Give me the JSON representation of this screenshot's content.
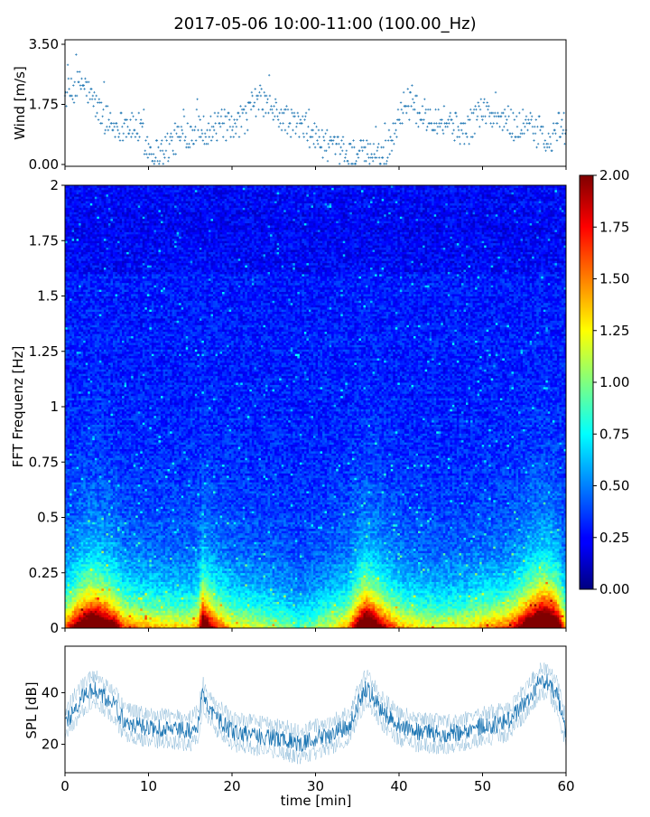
{
  "chart_data": [
    {
      "panel": "wind",
      "type": "scatter",
      "title": "2017-05-06 10:00-11:00 (100.00_Hz)",
      "ylabel": "Wind [m/s]",
      "xlim": [
        0,
        60
      ],
      "ylim": [
        0,
        3.5
      ],
      "yticks": [
        "0.00",
        "1.75",
        "3.50"
      ],
      "color": "#1f77b4",
      "trend": {
        "x": [
          0,
          1,
          2,
          3,
          4,
          5,
          6,
          7,
          8,
          9,
          10,
          11,
          12,
          13,
          14,
          15,
          16,
          17,
          18,
          19,
          20,
          21,
          22,
          23,
          24,
          25,
          26,
          27,
          28,
          29,
          30,
          31,
          32,
          33,
          34,
          35,
          36,
          37,
          38,
          39,
          40,
          41,
          42,
          43,
          44,
          45,
          46,
          47,
          48,
          49,
          50,
          51,
          52,
          53,
          54,
          55,
          56,
          57,
          58,
          59,
          60
        ],
        "y": [
          2.0,
          2.1,
          2.4,
          2.0,
          1.6,
          1.3,
          1.1,
          1.2,
          1.1,
          1.0,
          0.5,
          0.35,
          0.45,
          0.7,
          0.85,
          0.95,
          1.1,
          1.0,
          1.05,
          1.2,
          0.9,
          1.2,
          1.5,
          1.9,
          1.8,
          1.5,
          1.35,
          1.2,
          1.15,
          1.0,
          0.8,
          0.6,
          0.45,
          0.35,
          0.3,
          0.3,
          0.3,
          0.25,
          0.3,
          0.5,
          1.5,
          1.8,
          1.6,
          1.45,
          1.4,
          1.3,
          1.25,
          1.05,
          0.95,
          1.3,
          1.6,
          1.4,
          1.3,
          1.25,
          1.1,
          1.2,
          1.0,
          0.9,
          0.5,
          1.1,
          1.0
        ]
      }
    },
    {
      "panel": "spectrogram",
      "type": "heatmap",
      "ylabel": "FFT Frequenz [Hz]",
      "xlim": [
        0,
        60
      ],
      "ylim": [
        0,
        2
      ],
      "yticks": [
        "0",
        "0.25",
        "0.5",
        "0.75",
        "1",
        "1.25",
        "1.5",
        "1.75",
        "2"
      ],
      "colorbar": {
        "min": 0,
        "max": 2,
        "colormap": "jet",
        "ticks": [
          "0.00",
          "0.25",
          "0.50",
          "0.75",
          "1.00",
          "1.25",
          "1.50",
          "1.75",
          "2.00"
        ]
      }
    },
    {
      "panel": "spl",
      "type": "line",
      "ylabel": "SPL [dB]",
      "xlabel": "time [min]",
      "xlim": [
        0,
        60
      ],
      "ylim": [
        9,
        58
      ],
      "yticks": [
        "20",
        "40"
      ],
      "xticks": [
        "0",
        "10",
        "20",
        "30",
        "40",
        "50",
        "60"
      ],
      "color": "#1f77b4",
      "trend": {
        "x": [
          0,
          2,
          3.5,
          5,
          6,
          7,
          9,
          12,
          15,
          16,
          16.5,
          17,
          18,
          19,
          20,
          22,
          24,
          26,
          28,
          30,
          32,
          34,
          35,
          36,
          37,
          38,
          39,
          40,
          42,
          45,
          48,
          50,
          52,
          53,
          54,
          55,
          56,
          57,
          58,
          59,
          60
        ],
        "y": [
          28,
          38,
          42,
          38,
          35,
          29,
          27,
          26,
          25,
          28,
          40,
          36,
          30,
          28,
          25,
          24,
          23,
          22,
          20,
          22,
          24,
          27,
          35,
          42,
          38,
          33,
          30,
          27,
          25,
          24,
          25,
          27,
          28,
          29,
          32,
          36,
          40,
          45,
          44,
          38,
          25
        ]
      }
    }
  ]
}
